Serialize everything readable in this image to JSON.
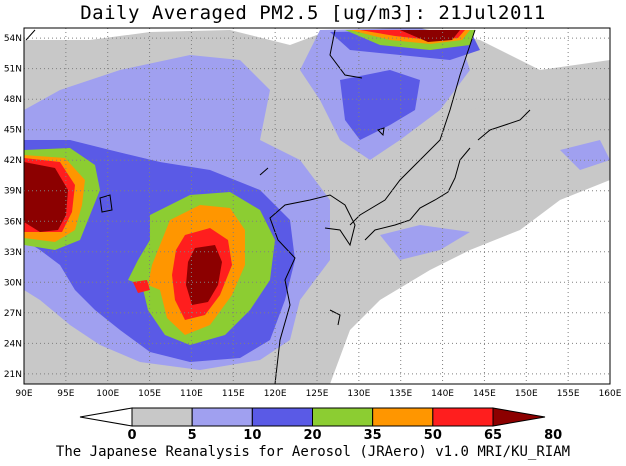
{
  "title": "Daily Averaged PM2.5 [ug/m3]: 21Jul2011",
  "footer": "The Japanese Reanalysis for Aerosol (JRAero) v1.0 MRI/KU_RIAM",
  "map": {
    "lon_range": [
      90,
      160
    ],
    "lat_range": [
      20,
      55
    ],
    "lon_ticks": [
      "90E",
      "95E",
      "100E",
      "105E",
      "110E",
      "115E",
      "120E",
      "125E",
      "130E",
      "135E",
      "140E",
      "145E",
      "150E",
      "155E",
      "160E"
    ],
    "lat_ticks": [
      "54N",
      "51N",
      "48N",
      "45N",
      "42N",
      "39N",
      "36N",
      "33N",
      "30N",
      "27N",
      "24N",
      "21N"
    ],
    "grid": "dotted"
  },
  "colorbar": {
    "levels": [
      "0",
      "5",
      "10",
      "20",
      "35",
      "50",
      "65",
      "80"
    ],
    "colors": [
      "#ffffff",
      "#c8c8c8",
      "#a0a0f0",
      "#5a5ae6",
      "#8ccd32",
      "#ff9600",
      "#ff1e1e",
      "#8c0000"
    ]
  }
}
